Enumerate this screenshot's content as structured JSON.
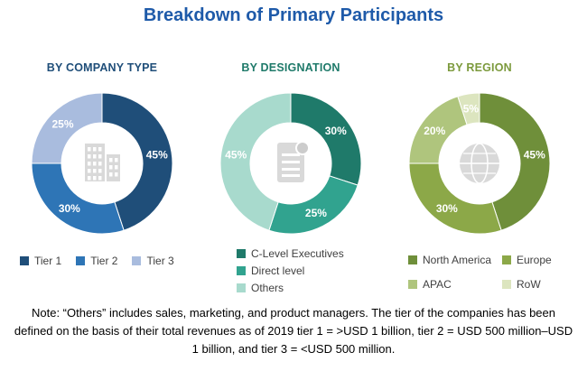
{
  "page": {
    "title": "Breakdown of Primary Participants",
    "title_color": "#1E5AA9"
  },
  "note": "Note: “Others” includes sales, marketing, and product managers. The tier of the companies has been defined on the basis of their total revenues as of 2019 tier 1 = >USD 1 billion, tier 2 = USD 500 million–USD 1 billion, and tier 3 = <USD 500 million.",
  "chart_data": [
    {
      "type": "pie",
      "variant": "donut",
      "title": "BY COMPANY TYPE",
      "title_color": "#1F4E79",
      "labels": [
        "Tier 1",
        "Tier 2",
        "Tier 3"
      ],
      "values": [
        45,
        30,
        25
      ],
      "value_labels": [
        "45%",
        "30%",
        "25%"
      ],
      "colors": [
        "#1F4E79",
        "#2E75B6",
        "#A9BCDE"
      ],
      "center_icon": "building-icon",
      "legend_layout": "row",
      "start_angle_deg": -90,
      "direction": "clockwise"
    },
    {
      "type": "pie",
      "variant": "donut",
      "title": "BY DESIGNATION",
      "title_color": "#1F7A6A",
      "labels": [
        "C-Level Executives",
        "Direct level",
        "Others"
      ],
      "values": [
        30,
        25,
        45
      ],
      "value_labels": [
        "30%",
        "25%",
        "45%"
      ],
      "colors": [
        "#1F7A6A",
        "#31A38F",
        "#A8DACD"
      ],
      "center_icon": "document-icon",
      "legend_layout": "column",
      "start_angle_deg": -90,
      "direction": "clockwise"
    },
    {
      "type": "pie",
      "variant": "donut",
      "title": "BY REGION",
      "title_color": "#7C9A3D",
      "labels": [
        "North America",
        "Europe",
        "APAC",
        "RoW"
      ],
      "values": [
        45,
        30,
        20,
        5
      ],
      "value_labels": [
        "45%",
        "30%",
        "20%",
        "5%"
      ],
      "colors": [
        "#6F8F3A",
        "#8CA848",
        "#AFC57D",
        "#DCE5BF"
      ],
      "center_icon": "globe-icon",
      "legend_layout": "grid",
      "start_angle_deg": -90,
      "direction": "clockwise"
    }
  ]
}
